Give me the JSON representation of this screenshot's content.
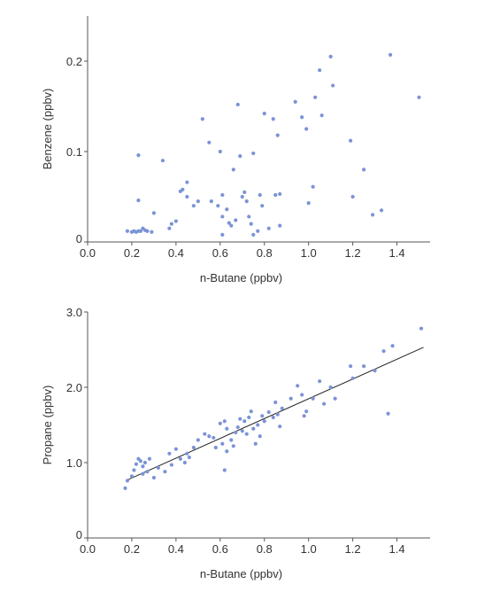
{
  "colors": {
    "point": "#7b93d6",
    "axis": "#555555",
    "trend": "#222222",
    "text": "#333333"
  },
  "chart_data": [
    {
      "id": "top",
      "type": "scatter",
      "xlabel": "n-Butane (ppbv)",
      "ylabel": "Benzene (ppbv)",
      "xlim": [
        0,
        1.55
      ],
      "ylim": [
        0,
        0.25
      ],
      "xticks": [
        0.0,
        0.2,
        0.4,
        0.6,
        0.8,
        1.0,
        1.2,
        1.4
      ],
      "xtick_labels": [
        "0.0",
        "0.2",
        "0.4",
        "0.6",
        "0.8",
        "1.0",
        "1.2",
        "1.4"
      ],
      "yticks": [
        0,
        0.1,
        0.2
      ],
      "ytick_labels": [
        "0",
        "0.1",
        "0.2"
      ],
      "grid": false,
      "points": [
        [
          0.18,
          0.012
        ],
        [
          0.2,
          0.011
        ],
        [
          0.21,
          0.012
        ],
        [
          0.22,
          0.011
        ],
        [
          0.23,
          0.012
        ],
        [
          0.24,
          0.012
        ],
        [
          0.25,
          0.015
        ],
        [
          0.26,
          0.013
        ],
        [
          0.27,
          0.012
        ],
        [
          0.29,
          0.011
        ],
        [
          0.23,
          0.096
        ],
        [
          0.23,
          0.046
        ],
        [
          0.3,
          0.032
        ],
        [
          0.34,
          0.09
        ],
        [
          0.37,
          0.015
        ],
        [
          0.38,
          0.02
        ],
        [
          0.4,
          0.023
        ],
        [
          0.42,
          0.056
        ],
        [
          0.43,
          0.058
        ],
        [
          0.45,
          0.05
        ],
        [
          0.45,
          0.066
        ],
        [
          0.48,
          0.04
        ],
        [
          0.5,
          0.045
        ],
        [
          0.52,
          0.136
        ],
        [
          0.55,
          0.11
        ],
        [
          0.56,
          0.045
        ],
        [
          0.59,
          0.04
        ],
        [
          0.6,
          0.1
        ],
        [
          0.61,
          0.052
        ],
        [
          0.61,
          0.028
        ],
        [
          0.61,
          0.008
        ],
        [
          0.63,
          0.036
        ],
        [
          0.64,
          0.021
        ],
        [
          0.65,
          0.018
        ],
        [
          0.66,
          0.08
        ],
        [
          0.67,
          0.024
        ],
        [
          0.68,
          0.152
        ],
        [
          0.69,
          0.095
        ],
        [
          0.7,
          0.05
        ],
        [
          0.71,
          0.055
        ],
        [
          0.72,
          0.045
        ],
        [
          0.73,
          0.028
        ],
        [
          0.74,
          0.02
        ],
        [
          0.75,
          0.098
        ],
        [
          0.75,
          0.008
        ],
        [
          0.77,
          0.012
        ],
        [
          0.78,
          0.052
        ],
        [
          0.79,
          0.04
        ],
        [
          0.8,
          0.142
        ],
        [
          0.82,
          0.015
        ],
        [
          0.84,
          0.136
        ],
        [
          0.85,
          0.052
        ],
        [
          0.86,
          0.118
        ],
        [
          0.87,
          0.018
        ],
        [
          0.87,
          0.053
        ],
        [
          0.94,
          0.155
        ],
        [
          0.97,
          0.138
        ],
        [
          0.99,
          0.125
        ],
        [
          1.0,
          0.043
        ],
        [
          1.02,
          0.061
        ],
        [
          1.03,
          0.16
        ],
        [
          1.05,
          0.19
        ],
        [
          1.06,
          0.14
        ],
        [
          1.1,
          0.205
        ],
        [
          1.11,
          0.173
        ],
        [
          1.19,
          0.112
        ],
        [
          1.2,
          0.05
        ],
        [
          1.25,
          0.08
        ],
        [
          1.29,
          0.03
        ],
        [
          1.33,
          0.035
        ],
        [
          1.37,
          0.207
        ],
        [
          1.5,
          0.16
        ]
      ]
    },
    {
      "id": "bottom",
      "type": "scatter",
      "xlabel": "n-Butane (ppbv)",
      "ylabel": "Propane (ppbv)",
      "xlim": [
        0,
        1.55
      ],
      "ylim": [
        0,
        3.0
      ],
      "xticks": [
        0.0,
        0.2,
        0.4,
        0.6,
        0.8,
        1.0,
        1.2,
        1.4
      ],
      "xtick_labels": [
        "0.0",
        "0.2",
        "0.4",
        "0.6",
        "0.8",
        "1.0",
        "1.2",
        "1.4"
      ],
      "yticks": [
        0,
        1.0,
        2.0,
        3.0
      ],
      "ytick_labels": [
        "0",
        "1.0",
        "2.0",
        "3.0"
      ],
      "grid": false,
      "trendline": {
        "x": [
          0.18,
          1.52
        ],
        "y": [
          0.77,
          2.53
        ]
      },
      "points": [
        [
          0.17,
          0.66
        ],
        [
          0.18,
          0.76
        ],
        [
          0.2,
          0.82
        ],
        [
          0.21,
          0.9
        ],
        [
          0.22,
          0.98
        ],
        [
          0.23,
          1.05
        ],
        [
          0.24,
          1.02
        ],
        [
          0.25,
          0.95
        ],
        [
          0.25,
          0.85
        ],
        [
          0.26,
          1.0
        ],
        [
          0.27,
          0.88
        ],
        [
          0.28,
          1.05
        ],
        [
          0.3,
          0.8
        ],
        [
          0.32,
          0.93
        ],
        [
          0.35,
          0.88
        ],
        [
          0.37,
          1.12
        ],
        [
          0.38,
          0.97
        ],
        [
          0.4,
          1.18
        ],
        [
          0.42,
          1.05
        ],
        [
          0.44,
          1.0
        ],
        [
          0.45,
          1.12
        ],
        [
          0.46,
          1.07
        ],
        [
          0.48,
          1.2
        ],
        [
          0.5,
          1.3
        ],
        [
          0.53,
          1.38
        ],
        [
          0.55,
          1.35
        ],
        [
          0.57,
          1.33
        ],
        [
          0.58,
          1.2
        ],
        [
          0.6,
          1.52
        ],
        [
          0.61,
          1.25
        ],
        [
          0.62,
          1.55
        ],
        [
          0.62,
          0.9
        ],
        [
          0.63,
          1.45
        ],
        [
          0.63,
          1.15
        ],
        [
          0.65,
          1.3
        ],
        [
          0.66,
          1.22
        ],
        [
          0.67,
          1.4
        ],
        [
          0.68,
          1.47
        ],
        [
          0.69,
          1.58
        ],
        [
          0.7,
          1.42
        ],
        [
          0.71,
          1.55
        ],
        [
          0.72,
          1.38
        ],
        [
          0.73,
          1.6
        ],
        [
          0.74,
          1.68
        ],
        [
          0.75,
          1.45
        ],
        [
          0.76,
          1.25
        ],
        [
          0.77,
          1.5
        ],
        [
          0.78,
          1.35
        ],
        [
          0.79,
          1.62
        ],
        [
          0.8,
          1.55
        ],
        [
          0.82,
          1.67
        ],
        [
          0.84,
          1.6
        ],
        [
          0.85,
          1.8
        ],
        [
          0.86,
          1.64
        ],
        [
          0.87,
          1.48
        ],
        [
          0.88,
          1.72
        ],
        [
          0.92,
          1.85
        ],
        [
          0.95,
          2.02
        ],
        [
          0.97,
          1.9
        ],
        [
          0.98,
          1.62
        ],
        [
          0.99,
          1.68
        ],
        [
          1.02,
          1.85
        ],
        [
          1.05,
          2.08
        ],
        [
          1.07,
          1.78
        ],
        [
          1.1,
          2.0
        ],
        [
          1.12,
          1.85
        ],
        [
          1.19,
          2.28
        ],
        [
          1.2,
          2.12
        ],
        [
          1.25,
          2.28
        ],
        [
          1.3,
          2.22
        ],
        [
          1.34,
          2.48
        ],
        [
          1.36,
          1.65
        ],
        [
          1.38,
          2.55
        ],
        [
          1.51,
          2.78
        ]
      ]
    }
  ]
}
